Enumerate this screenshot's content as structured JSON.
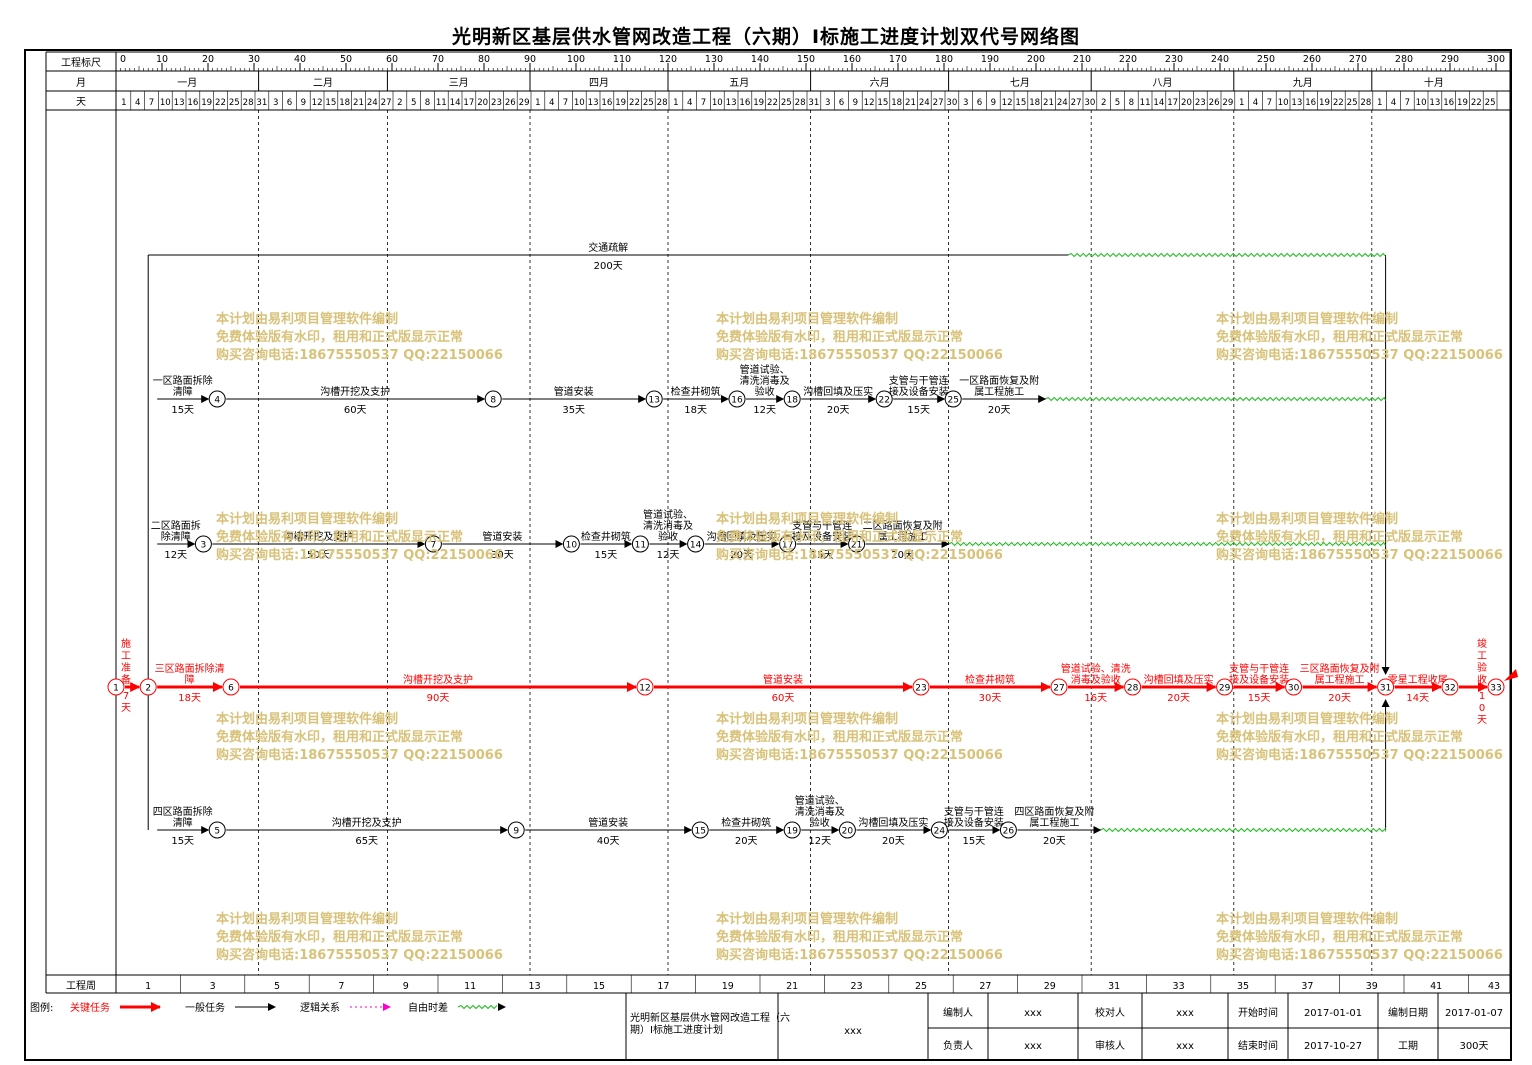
{
  "title": "光明新区基层供水管网改造工程（六期）Ⅰ标施工进度计划双代号网络图",
  "header": {
    "scale_label": "工程标尺",
    "month_label": "月",
    "day_label": "天",
    "week_label": "工程周",
    "scale_ticks": [
      "0",
      "10",
      "20",
      "30",
      "40",
      "50",
      "60",
      "70",
      "80",
      "90",
      "100",
      "110",
      "120",
      "130",
      "140",
      "150",
      "160",
      "170",
      "180",
      "190",
      "200",
      "210",
      "220",
      "230",
      "240",
      "250",
      "260",
      "270",
      "280",
      "290",
      "300"
    ],
    "months": [
      "一月",
      "二月",
      "三月",
      "四月",
      "五月",
      "六月",
      "七月",
      "八月",
      "九月",
      "十月"
    ],
    "month_starts": [
      0,
      31,
      59,
      90,
      120,
      151,
      181,
      212,
      243,
      273
    ],
    "days": [
      "1",
      "4",
      "7",
      "10",
      "13",
      "16",
      "19",
      "22",
      "25",
      "28",
      "31",
      "3",
      "6",
      "9",
      "12",
      "15",
      "18",
      "21",
      "24",
      "27",
      "2",
      "5",
      "8",
      "11",
      "14",
      "17",
      "20",
      "23",
      "26",
      "29",
      "1",
      "4",
      "7",
      "10",
      "13",
      "16",
      "19",
      "22",
      "25",
      "28",
      "1",
      "4",
      "7",
      "10",
      "13",
      "16",
      "19",
      "22",
      "25",
      "28",
      "31",
      "3",
      "6",
      "9",
      "12",
      "15",
      "18",
      "21",
      "24",
      "27",
      "30",
      "3",
      "6",
      "9",
      "12",
      "15",
      "18",
      "21",
      "24",
      "27",
      "30",
      "2",
      "5",
      "8",
      "11",
      "14",
      "17",
      "20",
      "23",
      "26",
      "29",
      "1",
      "4",
      "7",
      "10",
      "13",
      "16",
      "19",
      "22",
      "25",
      "28",
      "1",
      "4",
      "7",
      "10",
      "13",
      "16",
      "19",
      "22",
      "25"
    ],
    "weeks": [
      "1",
      "3",
      "5",
      "7",
      "9",
      "11",
      "13",
      "15",
      "17",
      "19",
      "21",
      "23",
      "25",
      "27",
      "29",
      "31",
      "33",
      "35",
      "37",
      "39",
      "41",
      "43"
    ]
  },
  "network": {
    "colors": {
      "critical": "#ff0000",
      "normal": "#000000",
      "float": "#22bb22",
      "watermark": "#d8c27a"
    },
    "nodes": [
      {
        "id": "1",
        "day": 0,
        "row": "main"
      },
      {
        "id": "2",
        "day": 7,
        "row": "main"
      },
      {
        "id": "6",
        "day": 25,
        "row": "main"
      },
      {
        "id": "12",
        "day": 115,
        "row": "main"
      },
      {
        "id": "23",
        "day": 175,
        "row": "main"
      },
      {
        "id": "27",
        "day": 205,
        "row": "main"
      },
      {
        "id": "28",
        "day": 221,
        "row": "main"
      },
      {
        "id": "29",
        "day": 241,
        "row": "main"
      },
      {
        "id": "30",
        "day": 256,
        "row": "main"
      },
      {
        "id": "31",
        "day": 276,
        "row": "main"
      },
      {
        "id": "32",
        "day": 290,
        "row": "main"
      },
      {
        "id": "33",
        "day": 300,
        "row": "main"
      },
      {
        "id": "4",
        "day": 22,
        "row": "r1"
      },
      {
        "id": "8",
        "day": 82,
        "row": "r1"
      },
      {
        "id": "13",
        "day": 117,
        "row": "r1"
      },
      {
        "id": "16",
        "day": 135,
        "row": "r1"
      },
      {
        "id": "18",
        "day": 147,
        "row": "r1"
      },
      {
        "id": "22",
        "day": 167,
        "row": "r1"
      },
      {
        "id": "25",
        "day": 182,
        "row": "r1"
      },
      {
        "id": "3",
        "day": 19,
        "row": "r2"
      },
      {
        "id": "7",
        "day": 69,
        "row": "r2"
      },
      {
        "id": "10",
        "day": 99,
        "row": "r2"
      },
      {
        "id": "11",
        "day": 114,
        "row": "r2"
      },
      {
        "id": "14",
        "day": 126,
        "row": "r2"
      },
      {
        "id": "17",
        "day": 146,
        "row": "r2"
      },
      {
        "id": "21",
        "day": 161,
        "row": "r2"
      },
      {
        "id": "5",
        "day": 22,
        "row": "r4"
      },
      {
        "id": "9",
        "day": 87,
        "row": "r4"
      },
      {
        "id": "15",
        "day": 127,
        "row": "r4"
      },
      {
        "id": "19",
        "day": 147,
        "row": "r4"
      },
      {
        "id": "20",
        "day": 159,
        "row": "r4"
      },
      {
        "id": "24",
        "day": 179,
        "row": "r4"
      },
      {
        "id": "26",
        "day": 194,
        "row": "r4"
      }
    ],
    "tasks": [
      {
        "row": "main",
        "from": 0,
        "to": 7,
        "name": "施工准备",
        "dur": "7天",
        "crit": true,
        "vert": true
      },
      {
        "row": "main",
        "from": 7,
        "to": 25,
        "name": "三区路面拆除清障",
        "dur": "18天",
        "crit": true
      },
      {
        "row": "main",
        "from": 25,
        "to": 115,
        "name": "沟槽开挖及支护",
        "dur": "90天",
        "crit": true
      },
      {
        "row": "main",
        "from": 115,
        "to": 175,
        "name": "管道安装",
        "dur": "60天",
        "crit": true
      },
      {
        "row": "main",
        "from": 175,
        "to": 205,
        "name": "检查井砌筑",
        "dur": "30天",
        "crit": true
      },
      {
        "row": "main",
        "from": 205,
        "to": 221,
        "name": "管道试验、清洗消毒及验收",
        "dur": "16天",
        "crit": true
      },
      {
        "row": "main",
        "from": 221,
        "to": 241,
        "name": "沟槽回填及压实",
        "dur": "20天",
        "crit": true
      },
      {
        "row": "main",
        "from": 241,
        "to": 256,
        "name": "支管与干管连接及设备安装",
        "dur": "15天",
        "crit": true
      },
      {
        "row": "main",
        "from": 256,
        "to": 276,
        "name": "三区路面恢复及附属工程施工",
        "dur": "20天",
        "crit": true
      },
      {
        "row": "main",
        "from": 276,
        "to": 290,
        "name": "零星工程收尾",
        "dur": "14天",
        "crit": true
      },
      {
        "row": "main",
        "from": 290,
        "to": 300,
        "name": "竣工验收",
        "dur": "10天",
        "crit": true,
        "vert": true
      },
      {
        "row": "r1",
        "from": 7,
        "to": 22,
        "name": "一区路面拆除清障",
        "dur": "15天"
      },
      {
        "row": "r1",
        "from": 22,
        "to": 82,
        "name": "沟槽开挖及支护",
        "dur": "60天"
      },
      {
        "row": "r1",
        "from": 82,
        "to": 117,
        "name": "管道安装",
        "dur": "35天"
      },
      {
        "row": "r1",
        "from": 117,
        "to": 135,
        "name": "检查井砌筑",
        "dur": "18天"
      },
      {
        "row": "r1",
        "from": 135,
        "to": 147,
        "name": "管道试验、清洗消毒及验收",
        "dur": "12天"
      },
      {
        "row": "r1",
        "from": 147,
        "to": 167,
        "name": "沟槽回填及压实",
        "dur": "20天"
      },
      {
        "row": "r1",
        "from": 167,
        "to": 182,
        "name": "支管与干管连接及设备安装",
        "dur": "15天"
      },
      {
        "row": "r1",
        "from": 182,
        "to": 202,
        "name": "一区路面恢复及附属工程施工",
        "dur": "20天"
      },
      {
        "row": "r2",
        "from": 7,
        "to": 19,
        "name": "二区路面拆除清障",
        "dur": "12天"
      },
      {
        "row": "r2",
        "from": 19,
        "to": 69,
        "name": "沟槽开挖及支护",
        "dur": "50天"
      },
      {
        "row": "r2",
        "from": 69,
        "to": 99,
        "name": "管道安装",
        "dur": "30天"
      },
      {
        "row": "r2",
        "from": 99,
        "to": 114,
        "name": "检查井砌筑",
        "dur": "15天"
      },
      {
        "row": "r2",
        "from": 114,
        "to": 126,
        "name": "管道试验、清洗消毒及验收",
        "dur": "12天"
      },
      {
        "row": "r2",
        "from": 126,
        "to": 146,
        "name": "沟槽回填及压实",
        "dur": "20天"
      },
      {
        "row": "r2",
        "from": 146,
        "to": 161,
        "name": "支管与干管连接及设备安装",
        "dur": "15天"
      },
      {
        "row": "r2",
        "from": 161,
        "to": 181,
        "name": "二区路面恢复及附属工程施工",
        "dur": "20天"
      },
      {
        "row": "r4",
        "from": 7,
        "to": 22,
        "name": "四区路面拆除清障",
        "dur": "15天"
      },
      {
        "row": "r4",
        "from": 22,
        "to": 87,
        "name": "沟槽开挖及支护",
        "dur": "65天"
      },
      {
        "row": "r4",
        "from": 87,
        "to": 127,
        "name": "管道安装",
        "dur": "40天"
      },
      {
        "row": "r4",
        "from": 127,
        "to": 147,
        "name": "检查井砌筑",
        "dur": "20天"
      },
      {
        "row": "r4",
        "from": 147,
        "to": 159,
        "name": "管道试验、清洗消毒及验收",
        "dur": "12天"
      },
      {
        "row": "r4",
        "from": 159,
        "to": 179,
        "name": "沟槽回填及压实",
        "dur": "20天"
      },
      {
        "row": "r4",
        "from": 179,
        "to": 194,
        "name": "支管与干管连接及设备安装",
        "dur": "15天"
      },
      {
        "row": "r4",
        "from": 194,
        "to": 214,
        "name": "四区路面恢复及附属工程施工",
        "dur": "20天"
      },
      {
        "row": "r0",
        "from": 7,
        "to": 207,
        "name": "交通疏解",
        "dur": "200天"
      }
    ],
    "float_ranges": [
      {
        "row": "r0",
        "from": 207,
        "to": 276
      },
      {
        "row": "r1",
        "from": 202,
        "to": 276
      },
      {
        "row": "r2",
        "from": 181,
        "to": 276
      },
      {
        "row": "r4",
        "from": 214,
        "to": 276
      }
    ]
  },
  "watermark": {
    "lines": [
      "本计划由易利项目管理软件编制",
      "免费体验版有水印，租用和正式版显示正常",
      "购买咨询电话:18675550537 QQ:22150066"
    ]
  },
  "legend": {
    "label": "图例:",
    "items": [
      {
        "name": "关键任务",
        "kind": "critical"
      },
      {
        "name": "一般任务",
        "kind": "normal"
      },
      {
        "name": "逻辑关系",
        "kind": "logic"
      },
      {
        "name": "自由时差",
        "kind": "float"
      }
    ]
  },
  "footer": {
    "project_name": "光明新区基层供水管网改造工程（六期）Ⅰ标施工进度计划",
    "company": "xxx",
    "cells": [
      {
        "label": "编制人",
        "value": "xxx"
      },
      {
        "label": "校对人",
        "value": "xxx"
      },
      {
        "label": "开始时间",
        "value": "2017-01-01"
      },
      {
        "label": "编制日期",
        "value": "2017-01-07"
      },
      {
        "label": "负责人",
        "value": "xxx"
      },
      {
        "label": "审核人",
        "value": "xxx"
      },
      {
        "label": "结束时间",
        "value": "2017-10-27"
      },
      {
        "label": "工期",
        "value": "300天"
      }
    ]
  }
}
